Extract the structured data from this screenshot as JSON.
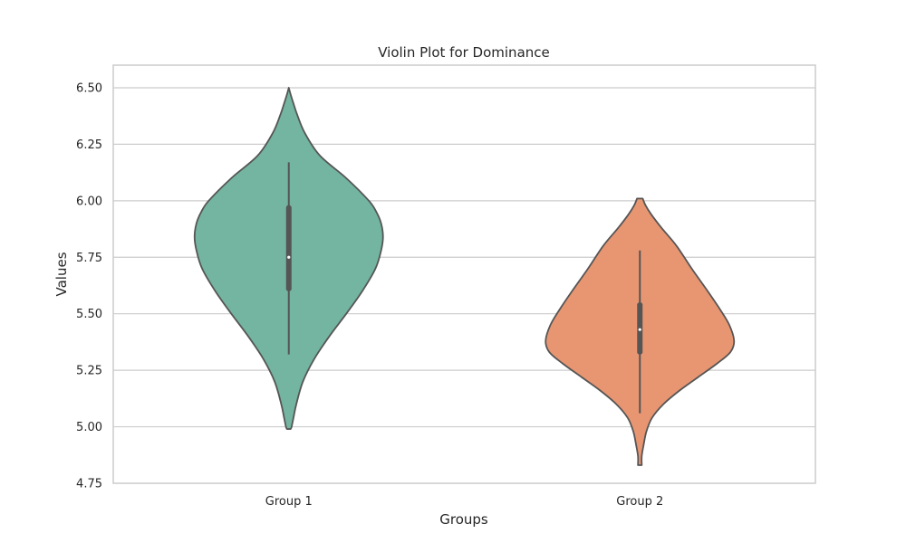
{
  "chart_data": {
    "type": "violin",
    "title": "Violin Plot for Dominance",
    "xlabel": "Groups",
    "ylabel": "Values",
    "ylim": [
      4.75,
      6.6
    ],
    "y_ticks": [
      "4.75",
      "5.00",
      "5.25",
      "5.50",
      "5.75",
      "6.00",
      "6.25",
      "6.50"
    ],
    "y_tick_values": [
      4.75,
      5.0,
      5.25,
      5.5,
      5.75,
      6.0,
      6.25,
      6.5
    ],
    "grid": "horizontal",
    "categories": [
      "Group 1",
      "Group 2"
    ],
    "violins": [
      {
        "category": "Group 1",
        "color": "#73b5a0",
        "min": 5.32,
        "q1": 5.6,
        "median": 5.75,
        "q3": 5.98,
        "max": 6.17,
        "kde_extent": [
          4.99,
          6.5
        ],
        "density": [
          [
            6.5,
            0.0
          ],
          [
            6.47,
            0.02
          ],
          [
            6.43,
            0.05
          ],
          [
            6.38,
            0.09
          ],
          [
            6.3,
            0.17
          ],
          [
            6.2,
            0.33
          ],
          [
            6.1,
            0.61
          ],
          [
            6.0,
            0.85
          ],
          [
            5.95,
            0.93
          ],
          [
            5.9,
            0.98
          ],
          [
            5.84,
            1.0
          ],
          [
            5.78,
            0.98
          ],
          [
            5.7,
            0.92
          ],
          [
            5.6,
            0.78
          ],
          [
            5.5,
            0.61
          ],
          [
            5.4,
            0.43
          ],
          [
            5.3,
            0.27
          ],
          [
            5.2,
            0.15
          ],
          [
            5.1,
            0.08
          ],
          [
            5.04,
            0.05
          ],
          [
            5.0,
            0.03
          ],
          [
            4.99,
            0.02
          ]
        ]
      },
      {
        "category": "Group 2",
        "color": "#e89672",
        "min": 5.06,
        "q1": 5.32,
        "median": 5.43,
        "q3": 5.55,
        "max": 5.78,
        "kde_extent": [
          4.83,
          6.01
        ],
        "density": [
          [
            6.01,
            0.03
          ],
          [
            5.98,
            0.06
          ],
          [
            5.94,
            0.12
          ],
          [
            5.88,
            0.23
          ],
          [
            5.8,
            0.39
          ],
          [
            5.7,
            0.55
          ],
          [
            5.6,
            0.72
          ],
          [
            5.52,
            0.85
          ],
          [
            5.45,
            0.95
          ],
          [
            5.38,
            1.0
          ],
          [
            5.33,
            0.96
          ],
          [
            5.28,
            0.82
          ],
          [
            5.22,
            0.62
          ],
          [
            5.16,
            0.42
          ],
          [
            5.1,
            0.25
          ],
          [
            5.04,
            0.13
          ],
          [
            4.98,
            0.07
          ],
          [
            4.92,
            0.04
          ],
          [
            4.87,
            0.02
          ],
          [
            4.83,
            0.02
          ]
        ]
      }
    ],
    "colors": {
      "outline": "#555555",
      "grid": "#cccccc",
      "frame": "#cccccc",
      "box": "#555555",
      "median_dot": "#ffffff"
    }
  }
}
